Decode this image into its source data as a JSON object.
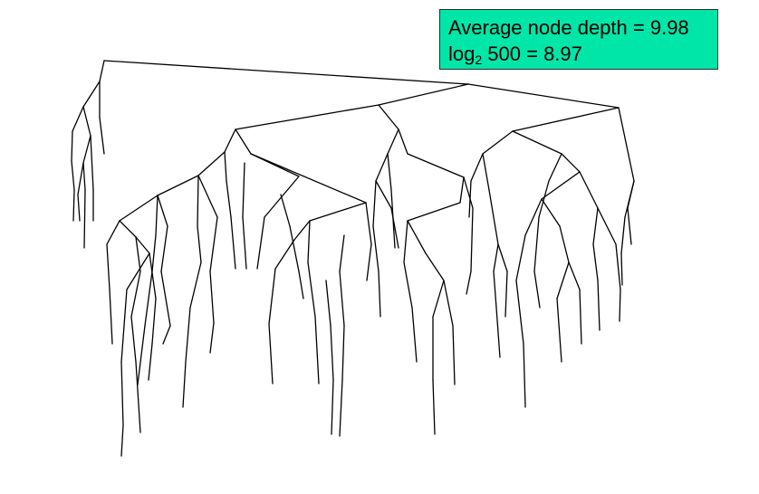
{
  "stats": {
    "line1": {
      "label": "Average node depth",
      "eq": " = ",
      "value": "9.98"
    },
    "line2": {
      "prefix": "log",
      "base": "2",
      "arg": " 500",
      "eq": " = ",
      "value": "8.97"
    }
  }
}
